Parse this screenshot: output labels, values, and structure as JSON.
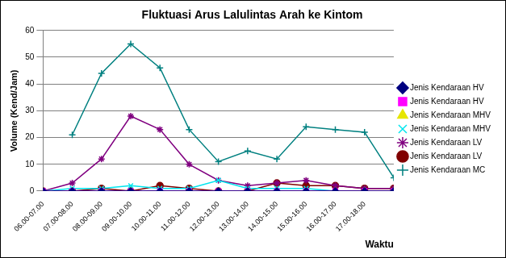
{
  "chart_data": {
    "type": "line",
    "title": "Fluktuasi Arus Lalulintas Arah ke Kintom",
    "x_label": "Waktu",
    "y_label": "Volume (Kend/Jam)",
    "categories": [
      "06.00-07.00",
      "07.00-08.00",
      "08.00-09.00",
      "09.00-10.00",
      "10.00-11.00",
      "11.00-12.00",
      "12.00-13.00",
      "13.00-14.00",
      "14.00-15.00",
      "15.00-16.00",
      "16.00-17.00",
      "17.00-18.00",
      null
    ],
    "ylim": [
      0,
      60
    ],
    "yticks": [
      0,
      10,
      20,
      30,
      40,
      50,
      60
    ],
    "grid": true,
    "legend": "right",
    "series": [
      {
        "name": "Jenis Kendaraan HV",
        "color": "#000080",
        "marker": "diamond",
        "values": [
          0,
          0,
          0,
          0,
          0,
          0,
          0,
          0,
          0,
          0,
          0,
          0,
          0
        ]
      },
      {
        "name": "Jenis Kendaraan HV",
        "color": "#ff00ff",
        "marker": "square",
        "values": [
          0,
          0,
          0,
          0,
          0,
          0,
          0,
          0,
          0,
          0,
          0,
          0,
          0
        ]
      },
      {
        "name": "Jenis Kendaraan MHV",
        "color": "#e6e600",
        "marker": "triangle",
        "values": [
          0,
          0,
          0,
          0,
          0,
          0,
          0,
          0,
          0,
          0,
          0,
          0,
          0
        ]
      },
      {
        "name": "Jenis Kendaraan MHV",
        "color": "#00e5ee",
        "marker": "x",
        "values": [
          0,
          1,
          1,
          2,
          1,
          1,
          4,
          1,
          1,
          1,
          0,
          0,
          0
        ]
      },
      {
        "name": "Jenis Kendaraan LV",
        "color": "#800080",
        "marker": "star",
        "values": [
          0,
          3,
          12,
          28,
          23,
          10,
          4,
          2,
          3,
          4,
          2,
          1,
          1
        ]
      },
      {
        "name": "Jenis Kendaraan LV",
        "color": "#800000",
        "marker": "circle",
        "values": [
          0,
          0,
          1,
          0,
          2,
          1,
          0,
          0,
          3,
          2,
          2,
          1,
          1
        ]
      },
      {
        "name": "Jenis Kendaraan MC",
        "color": "#008080",
        "marker": "plus",
        "values": [
          null,
          21,
          44,
          55,
          46,
          23,
          11,
          15,
          12,
          24,
          23,
          22,
          5
        ]
      }
    ]
  }
}
